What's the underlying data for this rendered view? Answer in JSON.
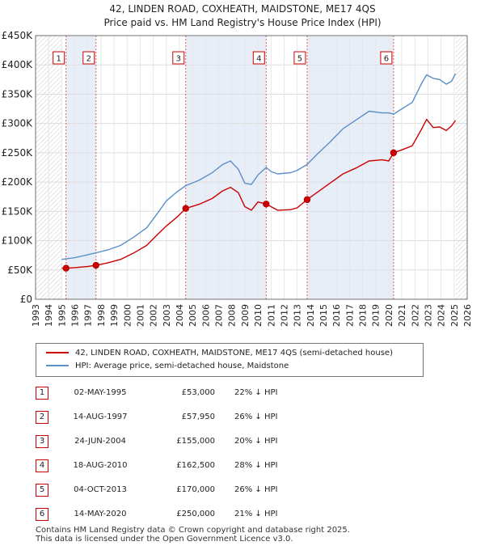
{
  "title_line1": "42, LINDEN ROAD, COXHEATH, MAIDSTONE, ME17 4QS",
  "title_line2": "Price paid vs. HM Land Registry's House Price Index (HPI)",
  "legend": {
    "property": "42, LINDEN ROAD, COXHEATH, MAIDSTONE, ME17 4QS (semi-detached house)",
    "hpi": "HPI: Average price, semi-detached house, Maidstone"
  },
  "colors": {
    "property": "#cc0000",
    "hpi": "#5b8fc7",
    "band": "#e8eef8",
    "hatch": "#c8c8c8"
  },
  "sales": [
    {
      "num": "1",
      "date": "02-MAY-1995",
      "price": "£53,000",
      "hpi": "22% ↓ HPI"
    },
    {
      "num": "2",
      "date": "14-AUG-1997",
      "price": "£57,950",
      "hpi": "26% ↓ HPI"
    },
    {
      "num": "3",
      "date": "24-JUN-2004",
      "price": "£155,000",
      "hpi": "20% ↓ HPI"
    },
    {
      "num": "4",
      "date": "18-AUG-2010",
      "price": "£162,500",
      "hpi": "28% ↓ HPI"
    },
    {
      "num": "5",
      "date": "04-OCT-2013",
      "price": "£170,000",
      "hpi": "26% ↓ HPI"
    },
    {
      "num": "6",
      "date": "14-MAY-2020",
      "price": "£250,000",
      "hpi": "21% ↓ HPI"
    }
  ],
  "footer_line1": "Contains HM Land Registry data © Crown copyright and database right 2025.",
  "footer_line2": "This data is licensed under the Open Government Licence v3.0.",
  "chart_data": {
    "type": "line",
    "title": "42, LINDEN ROAD, COXHEATH, MAIDSTONE, ME17 4QS — Price paid vs. HM Land Registry's House Price Index (HPI)",
    "xlim": [
      1993,
      2026
    ],
    "ylim": [
      0,
      450000
    ],
    "x_ticks": [
      "1993",
      "1994",
      "1995",
      "1996",
      "1997",
      "1998",
      "1999",
      "2000",
      "2001",
      "2002",
      "2003",
      "2004",
      "2005",
      "2006",
      "2007",
      "2008",
      "2009",
      "2010",
      "2011",
      "2012",
      "2013",
      "2014",
      "2015",
      "2016",
      "2017",
      "2018",
      "2019",
      "2020",
      "2021",
      "2022",
      "2023",
      "2024",
      "2025",
      "2026"
    ],
    "y_ticks": [
      {
        "value": 0,
        "label": "£0"
      },
      {
        "value": 50000,
        "label": "£50K"
      },
      {
        "value": 100000,
        "label": "£100K"
      },
      {
        "value": 150000,
        "label": "£150K"
      },
      {
        "value": 200000,
        "label": "£200K"
      },
      {
        "value": 250000,
        "label": "£250K"
      },
      {
        "value": 300000,
        "label": "£300K"
      },
      {
        "value": 350000,
        "label": "£350K"
      },
      {
        "value": 400000,
        "label": "£400K"
      },
      {
        "value": 450000,
        "label": "£450K"
      }
    ],
    "data_range": [
      1995.0,
      2025.1
    ],
    "shaded_bands": [
      [
        1995.33,
        1997.62
      ],
      [
        2004.48,
        2010.63
      ],
      [
        2013.76,
        2020.37
      ]
    ],
    "sale_points": [
      {
        "label": "1",
        "x": 1995.33,
        "y": 53000
      },
      {
        "label": "2",
        "x": 1997.62,
        "y": 57950
      },
      {
        "label": "3",
        "x": 2004.48,
        "y": 155000
      },
      {
        "label": "4",
        "x": 2010.63,
        "y": 162500
      },
      {
        "label": "5",
        "x": 2013.76,
        "y": 170000
      },
      {
        "label": "6",
        "x": 2020.37,
        "y": 250000
      }
    ],
    "series": [
      {
        "name": "42, LINDEN ROAD, COXHEATH, MAIDSTONE, ME17 4QS (semi-detached house)",
        "x": [
          1995.0,
          1995.33,
          1996.0,
          1997.0,
          1997.62,
          1998.5,
          1999.5,
          2000.5,
          2001.5,
          2002.3,
          2003.0,
          2003.8,
          2004.48,
          2005.5,
          2006.5,
          2007.3,
          2007.9,
          2008.5,
          2009.0,
          2009.5,
          2010.0,
          2010.63,
          2011.0,
          2011.5,
          2012.5,
          2013.0,
          2013.76,
          2014.5,
          2015.5,
          2016.5,
          2017.5,
          2018.5,
          2019.5,
          2020.0,
          2020.37,
          2021.0,
          2021.8,
          2022.5,
          2022.9,
          2023.4,
          2023.9,
          2024.4,
          2024.8,
          2025.1
        ],
        "y": [
          53000,
          53000,
          54000,
          56000,
          57950,
          62000,
          68000,
          79000,
          92000,
          110000,
          125000,
          140000,
          155000,
          162000,
          172000,
          185000,
          191000,
          182000,
          158000,
          152000,
          166000,
          162500,
          158000,
          152000,
          153000,
          156000,
          170000,
          182000,
          198000,
          214000,
          224000,
          236000,
          238000,
          236000,
          250000,
          255000,
          262000,
          290000,
          307000,
          293000,
          294000,
          288000,
          296000,
          305000
        ]
      },
      {
        "name": "HPI: Average price, semi-detached house, Maidstone",
        "x": [
          1995.0,
          1996.0,
          1997.0,
          1998.5,
          1999.5,
          2000.5,
          2001.5,
          2002.3,
          2003.0,
          2003.8,
          2004.48,
          2005.5,
          2006.5,
          2007.3,
          2007.9,
          2008.5,
          2009.0,
          2009.5,
          2010.0,
          2010.63,
          2011.0,
          2011.5,
          2012.5,
          2013.0,
          2013.76,
          2014.5,
          2015.5,
          2016.5,
          2017.5,
          2018.5,
          2019.5,
          2020.0,
          2020.37,
          2021.0,
          2021.8,
          2022.5,
          2022.9,
          2023.4,
          2023.9,
          2024.4,
          2024.8,
          2025.1
        ],
        "y": [
          68000,
          71000,
          76000,
          84000,
          92000,
          106000,
          122000,
          146000,
          168000,
          183000,
          194000,
          203000,
          216000,
          230000,
          236000,
          222000,
          198000,
          196000,
          212000,
          225000,
          218000,
          214000,
          216000,
          220000,
          230000,
          247000,
          268000,
          291000,
          306000,
          321000,
          318000,
          318000,
          316000,
          325000,
          336000,
          368000,
          383000,
          377000,
          375000,
          367000,
          372000,
          385000
        ]
      }
    ]
  }
}
